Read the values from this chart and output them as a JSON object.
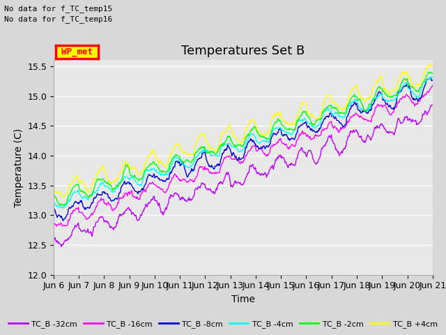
{
  "title": "Temperatures Set B",
  "ylabel": "Temperature (C)",
  "xlabel": "Time",
  "note_lines": [
    "No data for f_TC_temp15",
    "No data for f_TC_temp16"
  ],
  "wp_met_label": "WP_met",
  "ylim": [
    12.0,
    15.6
  ],
  "yticks": [
    12.0,
    12.5,
    13.0,
    13.5,
    14.0,
    14.5,
    15.0,
    15.5
  ],
  "x_tick_labels": [
    "Jun 6",
    "Jun 7",
    "Jun 8",
    "Jun 9",
    "Jun 10",
    "Jun 11",
    "Jun 12",
    "Jun 13",
    "Jun 14",
    "Jun 15",
    "Jun 16",
    "Jun 17",
    "Jun 18",
    "Jun 19",
    "Jun 20",
    "Jun 21"
  ],
  "series": [
    {
      "label": "TC_B -32cm",
      "color": "#bb00ff"
    },
    {
      "label": "TC_B -16cm",
      "color": "#ff00ff"
    },
    {
      "label": "TC_B -8cm",
      "color": "#0000dd"
    },
    {
      "label": "TC_B -4cm",
      "color": "#00ffff"
    },
    {
      "label": "TC_B -2cm",
      "color": "#00ff00"
    },
    {
      "label": "TC_B +4cm",
      "color": "#ffff00"
    }
  ],
  "bg_color": "#d8d8d8",
  "plot_bg_color": "#e8e8e8",
  "grid_color": "#ffffff",
  "title_fontsize": 13,
  "tick_fontsize": 9,
  "label_fontsize": 10,
  "figsize": [
    6.4,
    4.8
  ],
  "dpi": 100
}
